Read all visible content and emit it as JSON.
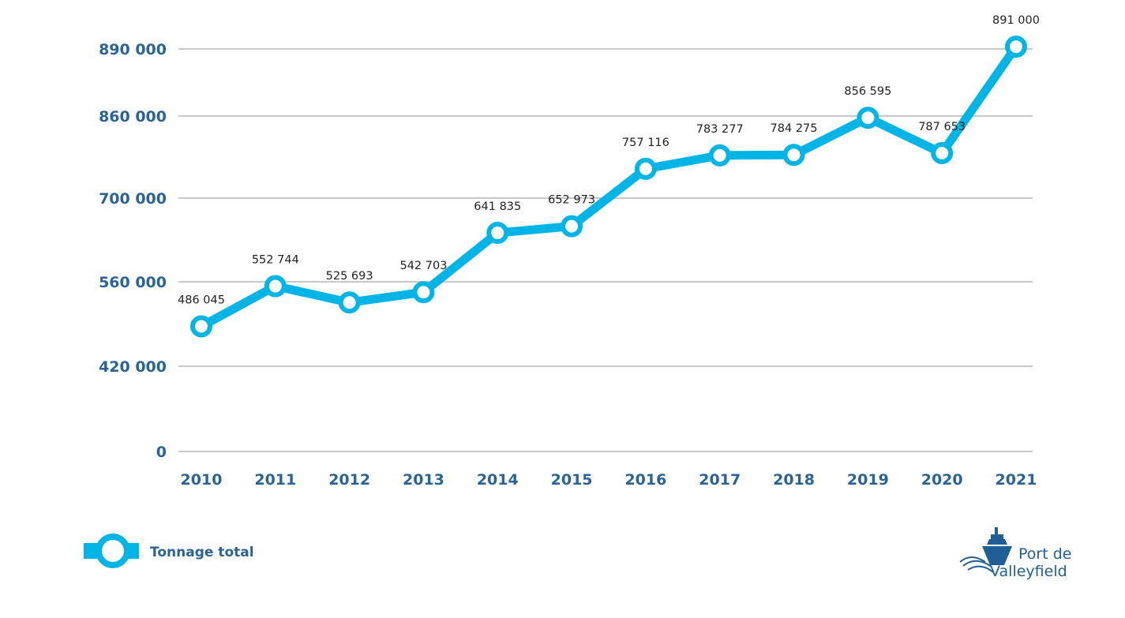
{
  "colors": {
    "line": "#00b4e6",
    "axis_text": "#2a6496",
    "grid": "#c8c8c8",
    "logo": "#1f5f96"
  },
  "chart_data": {
    "type": "line",
    "categories": [
      "2010",
      "2011",
      "2012",
      "2013",
      "2014",
      "2015",
      "2016",
      "2017",
      "2018",
      "2019",
      "2020",
      "2021"
    ],
    "series": [
      {
        "name": "Tonnage total",
        "values": [
          486045,
          552744,
          525693,
          542703,
          641835,
          652973,
          757116,
          783277,
          784275,
          856595,
          787653,
          891000
        ],
        "labels": [
          "486 045",
          "552 744",
          "525 693",
          "542 703",
          "641 835",
          "652 973",
          "757 116",
          "783 277",
          "784 275",
          "856 595",
          "787 653",
          "891 000"
        ]
      }
    ],
    "yticks": [
      "0",
      "420 000",
      "560 000",
      "700 000",
      "860 000",
      "890 000"
    ],
    "grid": true,
    "legend_position": "bottom-left"
  },
  "legend": {
    "label": "Tonnage total"
  },
  "logo": {
    "line1": "Port de",
    "line2": "Valleyfield"
  }
}
